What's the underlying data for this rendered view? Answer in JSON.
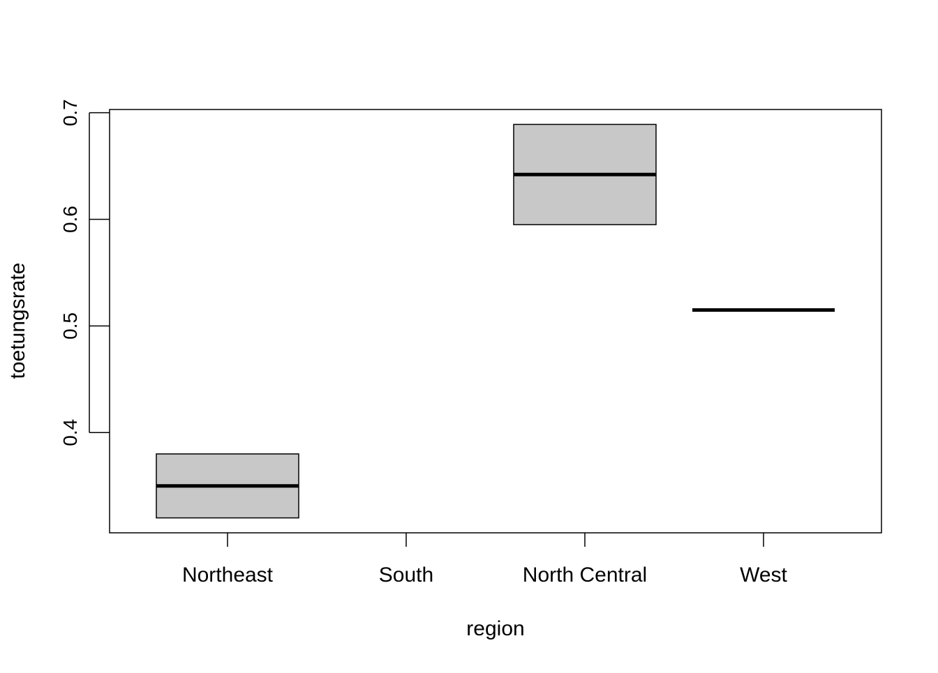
{
  "chart_data": {
    "type": "boxplot",
    "title": "",
    "xlabel": "region",
    "ylabel": "toetungsrate",
    "categories": [
      "Northeast",
      "South",
      "North Central",
      "West"
    ],
    "boxes": [
      {
        "category": "Northeast",
        "min": 0.32,
        "q1": 0.32,
        "median": 0.35,
        "q3": 0.38,
        "max": 0.38
      },
      {
        "category": "South",
        "min": null,
        "q1": null,
        "median": null,
        "q3": null,
        "max": null
      },
      {
        "category": "North Central",
        "min": 0.595,
        "q1": 0.595,
        "median": 0.642,
        "q3": 0.689,
        "max": 0.689
      },
      {
        "category": "West",
        "min": 0.515,
        "q1": 0.515,
        "median": 0.515,
        "q3": 0.515,
        "max": 0.515
      }
    ],
    "yticks": [
      0.4,
      0.5,
      0.6,
      0.7
    ],
    "ytick_labels": [
      "0.4",
      "0.5",
      "0.6",
      "0.7"
    ],
    "ylim": [
      0.306,
      0.703
    ],
    "grid": false,
    "box_fill": "#c8c8c8",
    "line_color": "#000000"
  }
}
